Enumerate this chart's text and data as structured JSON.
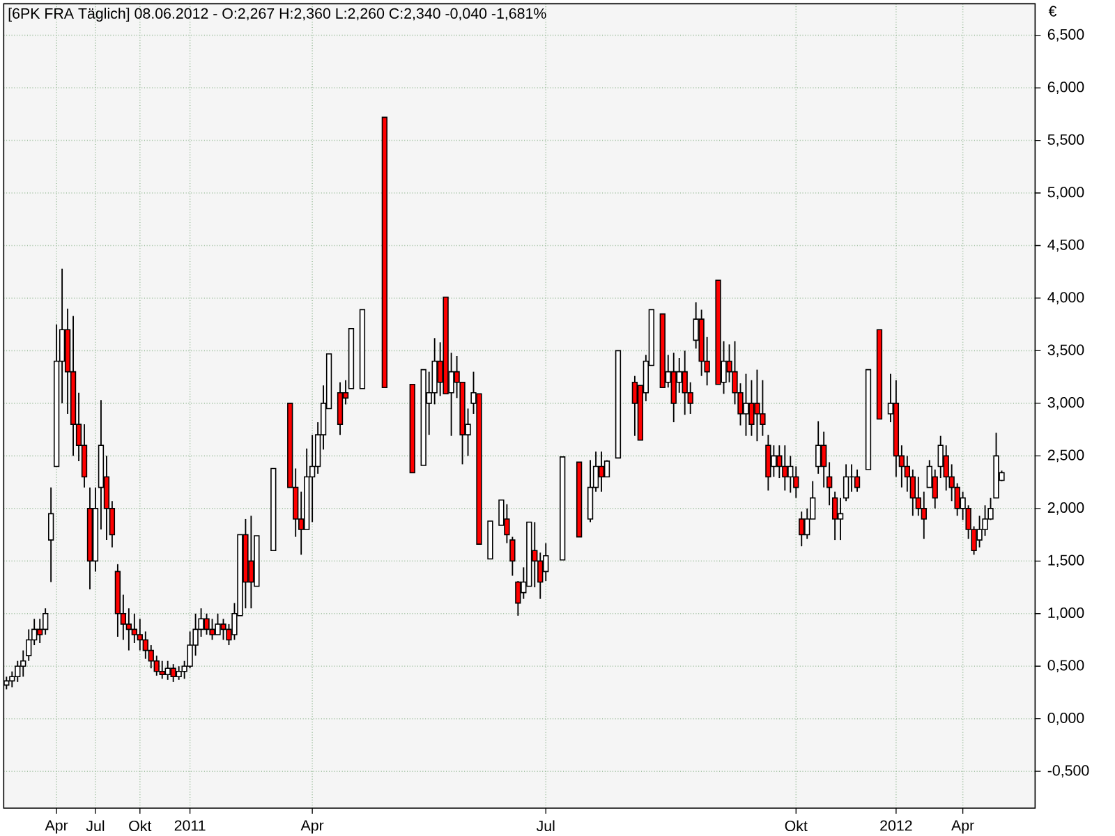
{
  "chart_data": {
    "type": "candlestick",
    "title": "[6PK FRA  Täglich] 08.06.2012 - O:2,267 H:2,360 L:2,260 C:2,340 -0,040 -1,681%",
    "ylabel": "€",
    "categories": [
      null,
      null,
      null,
      null,
      null,
      null,
      null,
      null,
      null,
      "Apr",
      null,
      null,
      null,
      null,
      null,
      null,
      "Jul",
      null,
      null,
      null,
      null,
      null,
      null,
      null,
      "Okt",
      null,
      null,
      null,
      null,
      null,
      null,
      null,
      null,
      "2011",
      null,
      null,
      null,
      null,
      null,
      null,
      null,
      null,
      null,
      null,
      null,
      null,
      null,
      null,
      null,
      null,
      null,
      null,
      null,
      null,
      null,
      "Apr",
      null,
      null,
      null,
      null,
      null,
      null,
      null,
      null,
      null,
      null,
      null,
      null,
      null,
      null,
      null,
      null,
      null,
      null,
      null,
      null,
      null,
      null,
      null,
      null,
      null,
      null,
      null,
      null,
      null,
      null,
      null,
      null,
      null,
      null,
      null,
      null,
      null,
      null,
      null,
      null,
      null,
      "Jul",
      null,
      null,
      null,
      null,
      null,
      null,
      null,
      null,
      null,
      null,
      null,
      null,
      null,
      null,
      null,
      null,
      null,
      null,
      null,
      null,
      null,
      null,
      null,
      null,
      null,
      null,
      null,
      null,
      null,
      null,
      null,
      null,
      null,
      null,
      null,
      null,
      null,
      null,
      null,
      null,
      null,
      null,
      null,
      null,
      "Okt",
      null,
      null,
      null,
      null,
      null,
      null,
      null,
      null,
      null,
      null,
      null,
      null,
      null,
      null,
      null,
      null,
      null,
      "2012",
      null,
      null,
      null,
      null,
      null,
      null,
      null,
      null,
      null,
      null,
      null,
      "Apr",
      null,
      null,
      null,
      null,
      null,
      null,
      null
    ],
    "ohlc": [
      [
        0.32,
        0.4,
        0.28,
        0.36
      ],
      [
        0.36,
        0.45,
        0.3,
        0.4
      ],
      [
        0.4,
        0.55,
        0.35,
        0.5
      ],
      [
        0.5,
        0.65,
        0.4,
        0.55
      ],
      [
        0.6,
        0.85,
        0.55,
        0.75
      ],
      [
        0.75,
        0.95,
        0.7,
        0.85
      ],
      [
        0.85,
        0.95,
        0.72,
        0.8
      ],
      [
        0.85,
        1.05,
        0.8,
        1.0
      ],
      [
        1.7,
        2.2,
        1.3,
        1.95
      ],
      [
        2.4,
        3.75,
        2.4,
        3.4
      ],
      [
        3.4,
        4.28,
        3.0,
        3.7
      ],
      [
        3.7,
        3.9,
        2.9,
        3.3
      ],
      [
        3.3,
        3.83,
        2.5,
        2.8
      ],
      [
        2.8,
        3.1,
        2.45,
        2.6
      ],
      [
        2.6,
        2.8,
        2.2,
        2.3
      ],
      [
        2.0,
        2.2,
        1.23,
        1.5
      ],
      [
        1.5,
        2.2,
        1.4,
        2.0
      ],
      [
        2.2,
        3.03,
        1.8,
        2.6
      ],
      [
        2.3,
        2.5,
        1.7,
        2.0
      ],
      [
        2.0,
        2.07,
        1.63,
        1.75
      ],
      [
        1.4,
        1.47,
        0.78,
        1.0
      ],
      [
        1.0,
        1.18,
        0.75,
        0.9
      ],
      [
        0.9,
        1.05,
        0.65,
        0.85
      ],
      [
        0.85,
        1.0,
        0.72,
        0.8
      ],
      [
        0.8,
        0.95,
        0.65,
        0.75
      ],
      [
        0.75,
        0.83,
        0.57,
        0.65
      ],
      [
        0.65,
        0.7,
        0.48,
        0.55
      ],
      [
        0.55,
        0.6,
        0.41,
        0.45
      ],
      [
        0.45,
        0.55,
        0.38,
        0.42
      ],
      [
        0.42,
        0.55,
        0.37,
        0.48
      ],
      [
        0.48,
        0.52,
        0.35,
        0.4
      ],
      [
        0.4,
        0.5,
        0.37,
        0.45
      ],
      [
        0.45,
        0.55,
        0.38,
        0.5
      ],
      [
        0.5,
        0.83,
        0.48,
        0.7
      ],
      [
        0.7,
        1.0,
        0.6,
        0.85
      ],
      [
        0.85,
        1.05,
        0.78,
        0.95
      ],
      [
        0.95,
        1.0,
        0.8,
        0.85
      ],
      [
        0.85,
        0.95,
        0.75,
        0.8
      ],
      [
        0.8,
        1.0,
        0.8,
        0.9
      ],
      [
        0.9,
        0.95,
        0.75,
        0.85
      ],
      [
        0.85,
        0.9,
        0.7,
        0.75
      ],
      [
        0.8,
        1.1,
        0.75,
        1.0
      ],
      [
        0.98,
        1.75,
        0.98,
        1.75
      ],
      [
        1.75,
        1.9,
        1.05,
        1.3
      ],
      [
        1.5,
        1.93,
        1.05,
        1.3
      ],
      [
        1.26,
        1.74,
        1.26,
        1.74
      ],
      null,
      null,
      [
        1.6,
        2.38,
        1.6,
        2.38
      ],
      null,
      null,
      [
        3.0,
        3.0,
        2.2,
        2.2
      ],
      [
        2.2,
        2.38,
        1.73,
        1.9
      ],
      [
        1.9,
        2.16,
        1.56,
        1.8
      ],
      [
        1.8,
        2.57,
        1.8,
        2.3
      ],
      [
        2.3,
        2.7,
        1.87,
        2.4
      ],
      [
        2.4,
        2.82,
        2.33,
        2.7
      ],
      [
        2.7,
        3.17,
        2.56,
        3.0
      ],
      [
        2.95,
        3.47,
        2.95,
        3.47
      ],
      null,
      [
        3.1,
        3.2,
        2.7,
        2.8
      ],
      [
        3.1,
        3.22,
        2.99,
        3.05
      ],
      [
        3.14,
        3.71,
        3.14,
        3.71
      ],
      null,
      [
        3.14,
        3.89,
        3.14,
        3.89
      ],
      null,
      null,
      null,
      [
        5.72,
        5.72,
        3.15,
        3.15
      ],
      null,
      null,
      null,
      null,
      [
        3.18,
        3.18,
        2.34,
        2.34
      ],
      null,
      [
        2.41,
        3.32,
        2.41,
        3.32
      ],
      [
        3.0,
        3.3,
        2.7,
        3.1
      ],
      [
        3.1,
        3.62,
        2.99,
        3.4
      ],
      [
        3.4,
        3.58,
        3.07,
        3.2
      ],
      [
        4.01,
        4.01,
        3.09,
        3.09
      ],
      [
        3.1,
        3.48,
        2.69,
        3.3
      ],
      [
        3.3,
        3.45,
        3.05,
        3.2
      ],
      [
        3.2,
        3.2,
        2.42,
        2.7
      ],
      [
        2.7,
        2.95,
        2.5,
        2.8
      ],
      [
        3.0,
        3.3,
        2.9,
        3.1
      ],
      [
        3.09,
        3.09,
        1.66,
        1.66
      ],
      null,
      [
        1.52,
        1.88,
        1.52,
        1.88
      ],
      null,
      [
        1.84,
        2.08,
        1.84,
        2.08
      ],
      [
        1.9,
        2.04,
        1.67,
        1.75
      ],
      [
        1.7,
        1.73,
        1.36,
        1.5
      ],
      [
        1.3,
        1.31,
        0.98,
        1.1
      ],
      [
        1.2,
        1.44,
        1.14,
        1.3
      ],
      [
        1.26,
        1.87,
        1.26,
        1.87
      ],
      [
        1.6,
        1.87,
        1.25,
        1.5
      ],
      [
        1.5,
        1.58,
        1.14,
        1.3
      ],
      [
        1.4,
        1.67,
        1.31,
        1.55
      ],
      null,
      null,
      [
        1.51,
        2.49,
        1.51,
        2.49
      ],
      null,
      null,
      [
        2.44,
        2.44,
        1.73,
        1.73
      ],
      null,
      [
        1.9,
        2.46,
        1.87,
        2.2
      ],
      [
        2.2,
        2.54,
        2.16,
        2.4
      ],
      [
        2.4,
        2.54,
        2.16,
        2.3
      ],
      [
        2.3,
        2.46,
        2.3,
        2.45
      ],
      null,
      [
        2.48,
        3.5,
        2.48,
        3.5
      ],
      null,
      null,
      [
        3.2,
        3.26,
        2.69,
        3.0
      ],
      [
        3.17,
        3.17,
        2.65,
        2.65
      ],
      [
        3.1,
        3.46,
        3.02,
        3.4
      ],
      [
        3.36,
        3.89,
        3.36,
        3.89
      ],
      null,
      [
        3.85,
        3.85,
        3.15,
        3.15
      ],
      [
        3.2,
        3.46,
        3.15,
        3.3
      ],
      [
        3.3,
        3.48,
        2.82,
        3.0
      ],
      [
        3.2,
        3.43,
        3.1,
        3.3
      ],
      [
        3.3,
        3.5,
        2.89,
        3.1
      ],
      [
        3.1,
        3.2,
        2.9,
        3.0
      ],
      [
        3.6,
        3.96,
        3.52,
        3.8
      ],
      [
        3.8,
        3.89,
        3.26,
        3.4
      ],
      [
        3.4,
        3.63,
        3.17,
        3.3
      ],
      null,
      [
        4.17,
        4.17,
        3.18,
        3.18
      ],
      [
        3.2,
        3.59,
        3.09,
        3.4
      ],
      [
        3.4,
        3.56,
        3.2,
        3.3
      ],
      [
        3.3,
        3.59,
        2.99,
        3.1
      ],
      [
        3.1,
        3.19,
        2.79,
        2.9
      ],
      [
        2.9,
        3.28,
        2.69,
        3.0
      ],
      [
        3.0,
        3.22,
        2.69,
        2.8
      ],
      [
        3.0,
        3.32,
        2.64,
        2.9
      ],
      [
        2.9,
        3.22,
        2.69,
        2.8
      ],
      [
        2.6,
        2.7,
        2.17,
        2.3
      ],
      [
        2.4,
        2.6,
        2.3,
        2.5
      ],
      [
        2.5,
        2.6,
        2.29,
        2.4
      ],
      [
        2.4,
        2.6,
        2.17,
        2.3
      ],
      [
        2.3,
        2.5,
        2.15,
        2.4
      ],
      [
        2.3,
        2.4,
        2.1,
        2.2
      ],
      [
        1.9,
        1.97,
        1.64,
        1.75
      ],
      [
        1.75,
        2.0,
        1.71,
        1.9
      ],
      [
        1.9,
        2.26,
        1.9,
        2.1
      ],
      [
        2.4,
        2.83,
        2.33,
        2.6
      ],
      [
        2.6,
        2.73,
        2.2,
        2.4
      ],
      [
        2.3,
        2.44,
        2.03,
        2.2
      ],
      [
        2.1,
        2.16,
        1.7,
        1.9
      ],
      [
        1.9,
        2.1,
        1.7,
        1.95
      ],
      [
        2.1,
        2.42,
        2.07,
        2.3
      ],
      [
        2.3,
        2.42,
        2.16,
        2.3
      ],
      [
        2.3,
        2.37,
        2.16,
        2.2
      ],
      null,
      [
        2.37,
        3.32,
        2.37,
        3.32
      ],
      null,
      [
        3.7,
        3.7,
        2.85,
        2.85
      ],
      null,
      [
        2.9,
        3.28,
        2.82,
        3.0
      ],
      [
        3.0,
        3.22,
        2.3,
        2.5
      ],
      [
        2.5,
        2.6,
        2.2,
        2.4
      ],
      [
        2.4,
        2.5,
        2.16,
        2.3
      ],
      [
        2.3,
        2.37,
        1.93,
        2.1
      ],
      [
        2.1,
        2.3,
        1.93,
        2.0
      ],
      [
        2.0,
        2.16,
        1.71,
        1.9
      ],
      [
        2.2,
        2.46,
        2.2,
        2.4
      ],
      [
        2.3,
        2.37,
        2.0,
        2.1
      ],
      [
        2.4,
        2.69,
        2.29,
        2.6
      ],
      [
        2.5,
        2.6,
        2.17,
        2.3
      ],
      [
        2.3,
        2.42,
        2.07,
        2.2
      ],
      [
        2.2,
        2.24,
        1.93,
        2.0
      ],
      [
        2.0,
        2.16,
        1.89,
        2.1
      ],
      [
        2.0,
        2.03,
        1.71,
        1.8
      ],
      [
        1.8,
        1.83,
        1.56,
        1.6
      ],
      [
        1.7,
        1.93,
        1.63,
        1.8
      ],
      [
        1.8,
        2.03,
        1.74,
        1.9
      ],
      [
        1.9,
        2.1,
        1.89,
        2.0
      ],
      [
        2.1,
        2.72,
        2.1,
        2.5
      ],
      [
        2.267,
        2.36,
        2.26,
        2.34
      ]
    ],
    "colors": [
      "#ffffff",
      "#ffffff",
      "#ffffff",
      "#ffffff",
      "#ffffff",
      "#ffffff",
      "#ff0000",
      "#ffffff",
      "#ffffff",
      "#ffffff",
      "#ffffff",
      "#ff0000",
      "#ff0000",
      "#ff0000",
      "#ff0000",
      "#ff0000",
      "#ffffff",
      "#ffffff",
      "#ff0000",
      "#ff0000",
      "#ff0000",
      "#ff0000",
      "#ff0000",
      "#ff0000",
      "#ff0000",
      "#ff0000",
      "#ff0000",
      "#ff0000",
      "#ff0000",
      "#ffffff",
      "#ff0000",
      "#ffffff",
      "#ffffff",
      "#ffffff",
      "#ffffff",
      "#ffffff",
      "#ff0000",
      "#ff0000",
      "#ffffff",
      "#ff0000",
      "#ff0000",
      "#ffffff",
      "#ffffff",
      "#ff0000",
      "#ff0000",
      "#ffffff",
      null,
      null,
      "#ffffff",
      null,
      null,
      "#ff0000",
      "#ff0000",
      "#ff0000",
      "#ffffff",
      "#ffffff",
      "#ffffff",
      "#ffffff",
      "#ffffff",
      null,
      "#ff0000",
      "#ff0000",
      "#ffffff",
      null,
      "#ffffff",
      null,
      null,
      null,
      "#ff0000",
      null,
      null,
      null,
      null,
      "#ff0000",
      null,
      "#ffffff",
      "#ffffff",
      "#ffffff",
      "#ff0000",
      "#ff0000",
      "#ffffff",
      "#ff0000",
      "#ff0000",
      "#ffffff",
      "#ffffff",
      "#ff0000",
      null,
      "#ffffff",
      null,
      "#ffffff",
      "#ff0000",
      "#ff0000",
      "#ff0000",
      "#ffffff",
      "#ffffff",
      "#ff0000",
      "#ff0000",
      "#ffffff",
      null,
      null,
      "#ffffff",
      null,
      null,
      "#ff0000",
      null,
      "#ffffff",
      "#ffffff",
      "#ff0000",
      "#ffffff",
      null,
      "#ffffff",
      null,
      null,
      "#ff0000",
      "#ff0000",
      "#ffffff",
      "#ffffff",
      null,
      "#ff0000",
      "#ffffff",
      "#ff0000",
      "#ffffff",
      "#ff0000",
      "#ff0000",
      "#ffffff",
      "#ff0000",
      "#ff0000",
      null,
      "#ff0000",
      "#ffffff",
      "#ff0000",
      "#ff0000",
      "#ff0000",
      "#ffffff",
      "#ff0000",
      "#ff0000",
      "#ff0000",
      "#ff0000",
      "#ffffff",
      "#ff0000",
      "#ff0000",
      "#ffffff",
      "#ff0000",
      "#ff0000",
      "#ffffff",
      "#ffffff",
      "#ffffff",
      "#ff0000",
      "#ff0000",
      "#ff0000",
      "#ffffff",
      "#ffffff",
      "#000000",
      "#ff0000",
      null,
      "#ffffff",
      null,
      "#ff0000",
      null,
      "#ffffff",
      "#ff0000",
      "#ff0000",
      "#ff0000",
      "#ff0000",
      "#ff0000",
      "#ff0000",
      "#ffffff",
      "#ff0000",
      "#ffffff",
      "#ff0000",
      "#ff0000",
      "#ff0000",
      "#ffffff",
      "#ff0000",
      "#ff0000",
      "#ffffff",
      "#ffffff",
      "#ffffff",
      "#ffffff",
      "#ffffff"
    ],
    "ylim": [
      -0.85,
      6.8
    ],
    "yticks": [
      {
        "value": -0.5,
        "label": "-0,500"
      },
      {
        "value": 0,
        "label": "0,000"
      },
      {
        "value": 0.5,
        "label": "0,500"
      },
      {
        "value": 1,
        "label": "1,000"
      },
      {
        "value": 1.5,
        "label": "1,500"
      },
      {
        "value": 2,
        "label": "2,000"
      },
      {
        "value": 2.5,
        "label": "2,500"
      },
      {
        "value": 3,
        "label": "3,000"
      },
      {
        "value": 3.5,
        "label": "3,500"
      },
      {
        "value": 4,
        "label": "4,000"
      },
      {
        "value": 4.5,
        "label": "4,500"
      },
      {
        "value": 5,
        "label": "5,000"
      },
      {
        "value": 5.5,
        "label": "5,500"
      },
      {
        "value": 6,
        "label": "6,000"
      },
      {
        "value": 6.5,
        "label": "6,500"
      }
    ],
    "grid": true
  }
}
